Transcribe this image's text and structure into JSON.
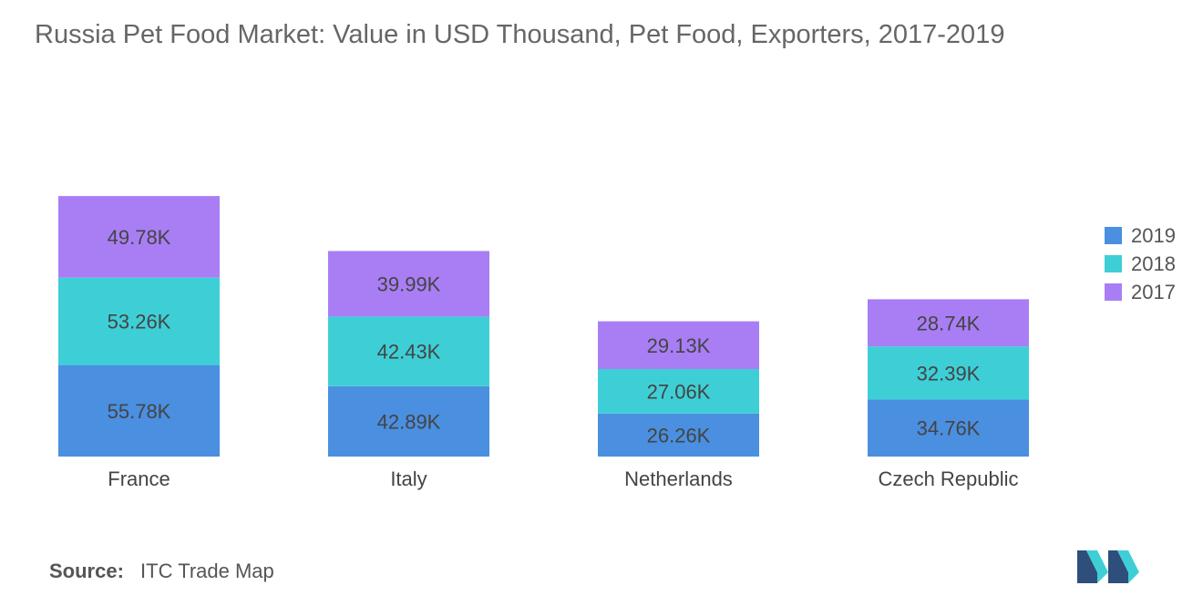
{
  "title": "Russia Pet Food Market: Value in USD Thousand, Pet Food, Exporters, 2017-2019",
  "source": {
    "label": "Source:",
    "text": "ITC Trade Map"
  },
  "colors": {
    "2019": "#4a8fe0",
    "2018": "#3ecfd6",
    "2017": "#a97ef5"
  },
  "chart_data": {
    "type": "bar",
    "stacked": true,
    "categories": [
      "France",
      "Italy",
      "Netherlands",
      "Czech Republic"
    ],
    "series": [
      {
        "name": "2019",
        "values": [
          55.78,
          42.89,
          26.26,
          34.76
        ],
        "labels": [
          "55.78K",
          "42.89K",
          "26.26K",
          "34.76K"
        ]
      },
      {
        "name": "2018",
        "values": [
          53.26,
          42.43,
          27.06,
          32.39
        ],
        "labels": [
          "53.26K",
          "42.43K",
          "27.06K",
          "32.39K"
        ]
      },
      {
        "name": "2017",
        "values": [
          49.78,
          39.99,
          29.13,
          28.74
        ],
        "labels": [
          "49.78K",
          "39.99K",
          "29.13K",
          "28.74K"
        ]
      }
    ],
    "legend": [
      "2019",
      "2018",
      "2017"
    ],
    "legend_position": "right",
    "grid": false,
    "y_axis_visible": false
  }
}
